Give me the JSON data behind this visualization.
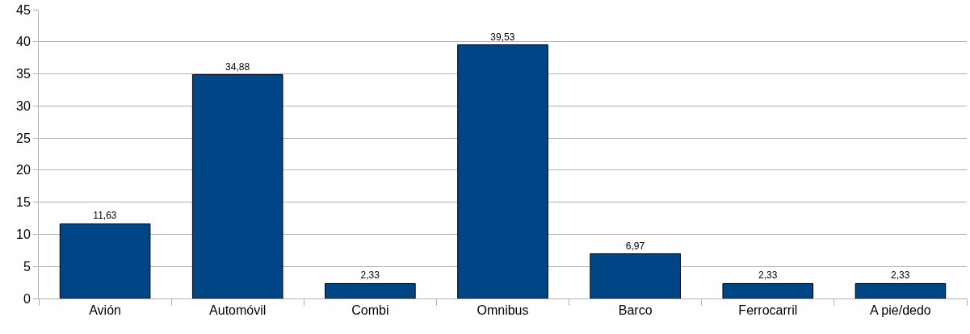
{
  "chart_data": {
    "type": "bar",
    "categories": [
      "Avión",
      "Automóvil",
      "Combi",
      "Omnibus",
      "Barco",
      "Ferrocarril",
      "A pie/dedo"
    ],
    "values": [
      11.63,
      34.88,
      2.33,
      39.53,
      6.97,
      2.33,
      2.33
    ],
    "value_labels": [
      "11,63",
      "34,88",
      "2,33",
      "39,53",
      "6,97",
      "2,33",
      "2,33"
    ],
    "color": "#004586",
    "ylim": [
      0,
      45
    ],
    "yticks": [
      0,
      5,
      10,
      15,
      20,
      25,
      30,
      35,
      40,
      45
    ],
    "grid": "y",
    "legend": false
  }
}
